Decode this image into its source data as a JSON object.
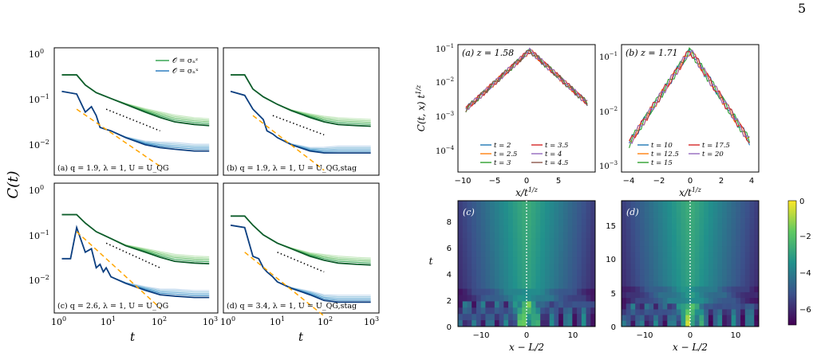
{
  "page_number": "5",
  "colors": {
    "green_dark": "#0d5c2a",
    "blue_dark": "#0d3f80",
    "orange": "#ffa500",
    "dotted": "#000000"
  },
  "chart_data": [
    {
      "type": "line",
      "panel": "left-grid",
      "xscale": "log",
      "yscale": "log",
      "xlim": [
        0.7,
        1500
      ],
      "ylim": [
        0.004,
        1.3
      ],
      "xticks": [
        "10^0",
        "10^1",
        "10^2",
        "10^3"
      ],
      "yticks": [
        "10^0",
        "10^-1",
        "10^-2"
      ],
      "xlabel": "t",
      "ylabel": "C(t)",
      "legend": [
        "𝒪 = σₙᶻ",
        "𝒪 = σₙˣ"
      ],
      "subplots": [
        {
          "caption": "(a) q = 1.9,  λ = 1,  U = U_QG",
          "series": [
            {
              "name": "𝒪 = σₙᶻ",
              "color": "#0d5c2a",
              "x": [
                1,
                2,
                3,
                5,
                10,
                20,
                50,
                100,
                200,
                500,
                1000
              ],
              "y": [
                0.38,
                0.38,
                0.24,
                0.17,
                0.13,
                0.1,
                0.07,
                0.055,
                0.045,
                0.04,
                0.038
              ]
            },
            {
              "name": "𝒪 = σₙˣ",
              "color": "#0d3f80",
              "x": [
                1,
                2,
                3,
                4,
                5,
                6,
                8,
                10,
                20,
                50,
                100,
                200,
                500,
                1000
              ],
              "y": [
                0.18,
                0.16,
                0.07,
                0.09,
                0.06,
                0.035,
                0.032,
                0.03,
                0.022,
                0.016,
                0.014,
                0.013,
                0.012,
                0.012
              ]
            },
            {
              "name": "",
              "color": "#ffa500",
              "dash": "orange",
              "x": [
                2,
                100
              ],
              "y": [
                0.08,
                0.006
              ]
            },
            {
              "name": "",
              "color": "#000000",
              "dash": "dotted",
              "x": [
                8,
                100
              ],
              "y": [
                0.08,
                0.03
              ]
            }
          ]
        },
        {
          "caption": "(b) q = 1.9,  λ = 1,  U = U_QG,stag",
          "series": [
            {
              "name": "",
              "color": "#0d5c2a",
              "x": [
                1,
                2,
                3,
                5,
                10,
                20,
                50,
                100,
                200,
                500,
                1000
              ],
              "y": [
                0.38,
                0.38,
                0.2,
                0.14,
                0.1,
                0.075,
                0.055,
                0.045,
                0.04,
                0.038,
                0.037
              ]
            },
            {
              "name": "",
              "color": "#0d3f80",
              "x": [
                1,
                2,
                3,
                5,
                6,
                8,
                10,
                20,
                50,
                100,
                200,
                500,
                1000
              ],
              "y": [
                0.18,
                0.15,
                0.08,
                0.05,
                0.03,
                0.026,
                0.022,
                0.016,
                0.012,
                0.011,
                0.011,
                0.011,
                0.011
              ]
            },
            {
              "name": "",
              "color": "#ffa500",
              "dash": "orange",
              "x": [
                3,
                100
              ],
              "y": [
                0.06,
                0.005
              ]
            },
            {
              "name": "",
              "color": "#000000",
              "dash": "dotted",
              "x": [
                8,
                100
              ],
              "y": [
                0.06,
                0.025
              ]
            }
          ]
        },
        {
          "caption": "(c) q = 2.6,  λ = 1,  U = U_QG",
          "series": [
            {
              "name": "",
              "color": "#0d5c2a",
              "x": [
                1,
                2,
                3,
                5,
                10,
                20,
                50,
                100,
                200,
                500,
                1000
              ],
              "y": [
                0.32,
                0.32,
                0.22,
                0.15,
                0.11,
                0.08,
                0.06,
                0.048,
                0.04,
                0.037,
                0.036
              ]
            },
            {
              "name": "",
              "color": "#0d3f80",
              "x": [
                1,
                1.5,
                2,
                3,
                4,
                5,
                6,
                7,
                8,
                10,
                20,
                50,
                100,
                200,
                500,
                1000
              ],
              "y": [
                0.045,
                0.045,
                0.18,
                0.06,
                0.07,
                0.03,
                0.035,
                0.025,
                0.03,
                0.02,
                0.015,
                0.011,
                0.009,
                0.0085,
                0.008,
                0.008
              ]
            },
            {
              "name": "",
              "color": "#ffa500",
              "dash": "orange",
              "x": [
                2,
                100
              ],
              "y": [
                0.15,
                0.005
              ]
            },
            {
              "name": "",
              "color": "#000000",
              "dash": "dotted",
              "x": [
                8,
                100
              ],
              "y": [
                0.09,
                0.03
              ]
            }
          ]
        },
        {
          "caption": "(d) q = 3.4,  λ = 1,  U = U_QG,stag",
          "series": [
            {
              "name": "",
              "color": "#0d5c2a",
              "x": [
                1,
                2,
                3,
                5,
                10,
                20,
                50,
                100,
                200,
                500,
                1000
              ],
              "y": [
                0.3,
                0.3,
                0.2,
                0.13,
                0.09,
                0.07,
                0.05,
                0.042,
                0.037,
                0.035,
                0.034
              ]
            },
            {
              "name": "",
              "color": "#0d3f80",
              "x": [
                1,
                2,
                3,
                4,
                5,
                6,
                8,
                10,
                20,
                50,
                100,
                200,
                500,
                1000
              ],
              "y": [
                0.2,
                0.18,
                0.05,
                0.045,
                0.03,
                0.025,
                0.02,
                0.016,
                0.012,
                0.009,
                0.007,
                0.0065,
                0.0065,
                0.0065
              ]
            },
            {
              "name": "",
              "color": "#ffa500",
              "dash": "orange",
              "x": [
                2,
                100
              ],
              "y": [
                0.06,
                0.0035
              ]
            },
            {
              "name": "",
              "color": "#000000",
              "dash": "dotted",
              "x": [
                10,
                100
              ],
              "y": [
                0.06,
                0.025
              ]
            }
          ]
        }
      ]
    },
    {
      "type": "line",
      "panel": "right-top",
      "yscale": "log",
      "ylabel": "C(t, x) t^{1/z}",
      "xlabel": "x/t^{1/z}",
      "subplots": [
        {
          "caption": "(a) z = 1.58",
          "xlim": [
            -11,
            10
          ],
          "ylim": [
            5e-05,
            0.12
          ],
          "xticks": [
            "−10",
            "−5",
            "0",
            "5"
          ],
          "yticks": [
            "10^-1",
            "10^-2",
            "10^-3",
            "10^-4"
          ],
          "legend": [
            "t = 2",
            "t = 2.5",
            "t = 3",
            "t = 3.5",
            "t = 4",
            "t = 4.5"
          ]
        },
        {
          "caption": "(b) z = 1.71",
          "xlim": [
            -4.5,
            4.5
          ],
          "ylim": [
            0.0008,
            0.15
          ],
          "xticks": [
            "−4",
            "−2",
            "0",
            "2",
            "4"
          ],
          "yticks": [
            "10^-1",
            "10^-2",
            "10^-3"
          ],
          "legend": [
            "t = 10",
            "t = 12.5",
            "t = 15",
            "t = 17.5",
            "t = 20"
          ]
        }
      ]
    },
    {
      "type": "heatmap",
      "panel": "right-bottom",
      "xlabel": "x − L/2",
      "ylabel": "t",
      "subplots": [
        {
          "caption": "(c)",
          "xticks": [
            "−10",
            "0",
            "10"
          ],
          "yticks": [
            "0",
            "2",
            "4",
            "6",
            "8"
          ]
        },
        {
          "caption": "(d)",
          "xticks": [
            "−10",
            "0",
            "10"
          ],
          "yticks": [
            "0",
            "5",
            "10",
            "15"
          ]
        }
      ],
      "colorbar": {
        "ticks": [
          "0",
          "−2",
          "−4",
          "−6"
        ]
      }
    }
  ]
}
